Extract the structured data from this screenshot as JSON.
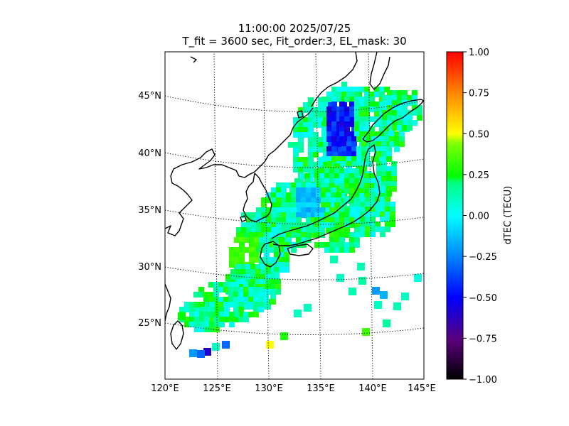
{
  "title_line1": "11:00:00 2025/07/25",
  "title_line2": "T_fit = 3600 sec, Fit_order:3, EL_mask: 30",
  "map": {
    "lat_labels": [
      "45°N",
      "40°N",
      "35°N",
      "30°N",
      "25°N"
    ],
    "lon_labels": [
      "120°E",
      "125°E",
      "130°E",
      "135°E",
      "140°E",
      "145°E"
    ],
    "gridlines": "dotted"
  },
  "colorbar": {
    "label": "dTEC (TECU)",
    "range": [
      -1.0,
      1.0
    ],
    "ticks": [
      "1.00",
      "0.75",
      "0.50",
      "0.25",
      "0.00",
      "−0.25",
      "−0.50",
      "−0.75",
      "−1.00"
    ],
    "colormap": [
      "#000000",
      "#5a007a",
      "#0000ff",
      "#00ffff",
      "#00ff00",
      "#ffff00",
      "#ff8000",
      "#ff0000"
    ]
  }
}
